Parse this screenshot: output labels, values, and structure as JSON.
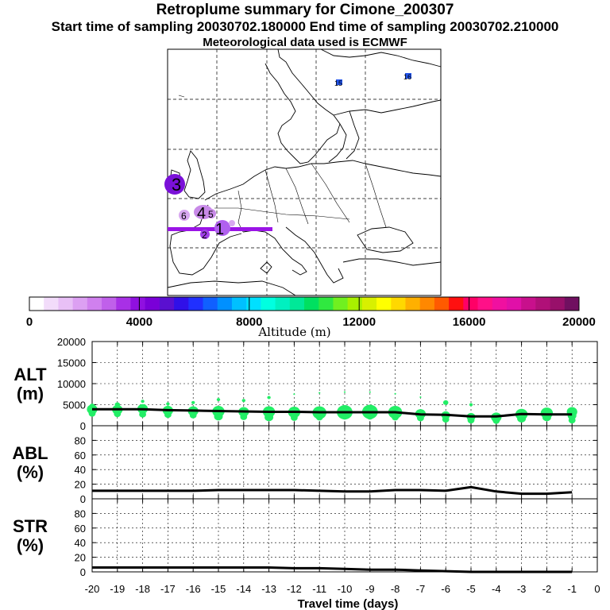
{
  "header": {
    "title": "Retroplume summary for Cimone_200307",
    "sampling_line": "Start time of sampling 20030702.180000     End time of sampling 20030702.210000",
    "met_line": "Meteorological data used is ECMWF"
  },
  "colors": {
    "track": "#9a14e6",
    "altitude_points": "#22ee66",
    "line": "#000000",
    "grid": "#000000"
  },
  "map": {
    "markers": [
      {
        "label": "1",
        "color": "#b060ee"
      },
      {
        "label": "2",
        "color": "#a040e8"
      },
      {
        "label": "3",
        "color": "#7a10d8"
      },
      {
        "label": "4",
        "color": "#c88ae8"
      },
      {
        "label": "5",
        "color": "#c88ae8"
      },
      {
        "label": "6",
        "color": "#d8a8f0"
      },
      {
        "label": "15",
        "color": "#2255ee"
      },
      {
        "label": "16",
        "color": "#2255ee"
      }
    ]
  },
  "colorbar": {
    "title": "Altitude (m)",
    "tick_labels": [
      "0",
      "4000",
      "8000",
      "12000",
      "16000",
      "20000"
    ],
    "min": 0,
    "max": 20000,
    "colors": [
      "#ffffff",
      "#f2dcfa",
      "#e8c0f6",
      "#dca0f2",
      "#d080ee",
      "#c060ea",
      "#a830e6",
      "#9010e0",
      "#7a00d8",
      "#5a10d0",
      "#3010e8",
      "#2030ff",
      "#1060ff",
      "#0090ff",
      "#00c0ff",
      "#00e0ff",
      "#00ffe0",
      "#00f0c0",
      "#00e898",
      "#00e060",
      "#30e840",
      "#70f020",
      "#a8f000",
      "#d8f000",
      "#ffff00",
      "#ffd800",
      "#ffb000",
      "#ff8800",
      "#ff5a00",
      "#ff1010",
      "#ff0066",
      "#ff1088",
      "#f010a0",
      "#e010a8",
      "#c8108c",
      "#b01078",
      "#98106a",
      "#701060"
    ]
  },
  "chart_data": {
    "type": "line",
    "xlabel": "Travel time (days)",
    "x_ticks": [
      -20,
      -19,
      -18,
      -17,
      -16,
      -15,
      -14,
      -13,
      -12,
      -11,
      -10,
      -9,
      -8,
      -7,
      -6,
      -5,
      -4,
      -3,
      -2,
      -1,
      0
    ],
    "x_tick_labels": [
      "-20",
      "-19",
      "-18",
      "-17",
      "-16",
      "-15",
      "-14",
      "-13",
      "-12",
      "-11",
      "-10",
      "-9",
      "-8",
      "-7",
      "-6",
      "-5",
      "-4",
      "-3",
      "-2",
      "-1",
      "0"
    ],
    "xlim": [
      -20,
      0
    ],
    "panels": [
      {
        "id": "alt",
        "ylabel_line1": "ALT",
        "ylabel_line2": "(m)",
        "ylim": [
          0,
          20000
        ],
        "y_ticks": [
          0,
          5000,
          10000,
          15000,
          20000
        ],
        "y_tick_labels": [
          "0",
          "5000",
          "10000",
          "15000",
          "20000"
        ],
        "x": [
          -20,
          -19,
          -18,
          -17,
          -16,
          -15,
          -14,
          -13,
          -12,
          -11,
          -10,
          -9,
          -8,
          -7,
          -6,
          -5,
          -4,
          -3,
          -2,
          -1
        ],
        "values": [
          3900,
          3900,
          3900,
          3700,
          3600,
          3500,
          3400,
          3300,
          3300,
          3200,
          3200,
          3200,
          3200,
          2700,
          2600,
          2200,
          2200,
          2800,
          2700,
          2700
        ],
        "scatter": [
          {
            "x": -20,
            "y": 3900,
            "s": 6
          },
          {
            "x": -20,
            "y": 2900,
            "s": 4
          },
          {
            "x": -20,
            "y": 4700,
            "s": 3
          },
          {
            "x": -19,
            "y": 3800,
            "s": 6
          },
          {
            "x": -19,
            "y": 2800,
            "s": 4
          },
          {
            "x": -19,
            "y": 5000,
            "s": 3
          },
          {
            "x": -18,
            "y": 4000,
            "s": 6
          },
          {
            "x": -18,
            "y": 2700,
            "s": 4
          },
          {
            "x": -18,
            "y": 5800,
            "s": 2
          },
          {
            "x": -17,
            "y": 3600,
            "s": 6
          },
          {
            "x": -17,
            "y": 2600,
            "s": 4
          },
          {
            "x": -17,
            "y": 5200,
            "s": 2
          },
          {
            "x": -16,
            "y": 3500,
            "s": 6
          },
          {
            "x": -16,
            "y": 2500,
            "s": 4
          },
          {
            "x": -16,
            "y": 5500,
            "s": 2
          },
          {
            "x": -15,
            "y": 3400,
            "s": 7
          },
          {
            "x": -15,
            "y": 2200,
            "s": 5
          },
          {
            "x": -15,
            "y": 6200,
            "s": 2
          },
          {
            "x": -14,
            "y": 3300,
            "s": 6
          },
          {
            "x": -14,
            "y": 2100,
            "s": 4
          },
          {
            "x": -14,
            "y": 6000,
            "s": 2
          },
          {
            "x": -13,
            "y": 3300,
            "s": 7
          },
          {
            "x": -13,
            "y": 2000,
            "s": 5
          },
          {
            "x": -13,
            "y": 6700,
            "s": 2
          },
          {
            "x": -12,
            "y": 3200,
            "s": 7
          },
          {
            "x": -12,
            "y": 1900,
            "s": 4
          },
          {
            "x": -12,
            "y": 7500,
            "s": 1
          },
          {
            "x": -11,
            "y": 3100,
            "s": 8
          },
          {
            "x": -11,
            "y": 2000,
            "s": 4
          },
          {
            "x": -11,
            "y": 7800,
            "s": 1
          },
          {
            "x": -10,
            "y": 3200,
            "s": 9
          },
          {
            "x": -10,
            "y": 2200,
            "s": 4
          },
          {
            "x": -10,
            "y": 8000,
            "s": 1
          },
          {
            "x": -9,
            "y": 3300,
            "s": 9
          },
          {
            "x": -9,
            "y": 2200,
            "s": 4
          },
          {
            "x": -9,
            "y": 8000,
            "s": 1
          },
          {
            "x": -8,
            "y": 3200,
            "s": 8
          },
          {
            "x": -8,
            "y": 2000,
            "s": 4
          },
          {
            "x": -8,
            "y": 7600,
            "s": 1
          },
          {
            "x": -7,
            "y": 2800,
            "s": 6
          },
          {
            "x": -7,
            "y": 1800,
            "s": 4
          },
          {
            "x": -7,
            "y": 6800,
            "s": 1
          },
          {
            "x": -6,
            "y": 2500,
            "s": 5
          },
          {
            "x": -6,
            "y": 1500,
            "s": 4
          },
          {
            "x": -6,
            "y": 5500,
            "s": 3
          },
          {
            "x": -5,
            "y": 2100,
            "s": 5
          },
          {
            "x": -5,
            "y": 1300,
            "s": 4
          },
          {
            "x": -5,
            "y": 5000,
            "s": 2
          },
          {
            "x": -4,
            "y": 2000,
            "s": 6
          },
          {
            "x": -4,
            "y": 1200,
            "s": 4
          },
          {
            "x": -3,
            "y": 2700,
            "s": 7
          },
          {
            "x": -3,
            "y": 1700,
            "s": 5
          },
          {
            "x": -2,
            "y": 3000,
            "s": 7
          },
          {
            "x": -2,
            "y": 2000,
            "s": 5
          },
          {
            "x": -1,
            "y": 3300,
            "s": 6
          },
          {
            "x": -1,
            "y": 2400,
            "s": 5
          },
          {
            "x": -1,
            "y": 1300,
            "s": 4
          }
        ]
      },
      {
        "id": "abl",
        "ylabel_line1": "ABL",
        "ylabel_line2": "(%)",
        "ylim": [
          0,
          100
        ],
        "y_ticks": [
          0,
          20,
          40,
          60,
          80
        ],
        "y_tick_labels": [
          "0",
          "20",
          "40",
          "60",
          "80"
        ],
        "x": [
          -20,
          -19,
          -18,
          -17,
          -16,
          -15,
          -14,
          -13,
          -12,
          -11,
          -10,
          -9,
          -8,
          -7,
          -6,
          -5,
          -4,
          -3,
          -2,
          -1
        ],
        "values": [
          11,
          11,
          11,
          11,
          11,
          12,
          12,
          12,
          12,
          11,
          10,
          10,
          12,
          12,
          11,
          16,
          10,
          7,
          7,
          9
        ]
      },
      {
        "id": "str",
        "ylabel_line1": "STR",
        "ylabel_line2": "(%)",
        "ylim": [
          0,
          100
        ],
        "y_ticks": [
          0,
          20,
          40,
          60,
          80
        ],
        "y_tick_labels": [
          "0",
          "20",
          "40",
          "60",
          "80"
        ],
        "x": [
          -20,
          -19,
          -18,
          -17,
          -16,
          -15,
          -14,
          -13,
          -12,
          -11,
          -10,
          -9,
          -8,
          -7,
          -6,
          -5,
          -4,
          -3,
          -2,
          -1
        ],
        "values": [
          6,
          6,
          6,
          6,
          6,
          6,
          6,
          6,
          5,
          5,
          4,
          3,
          3,
          2,
          1,
          0,
          0,
          0,
          0,
          0
        ]
      }
    ]
  }
}
